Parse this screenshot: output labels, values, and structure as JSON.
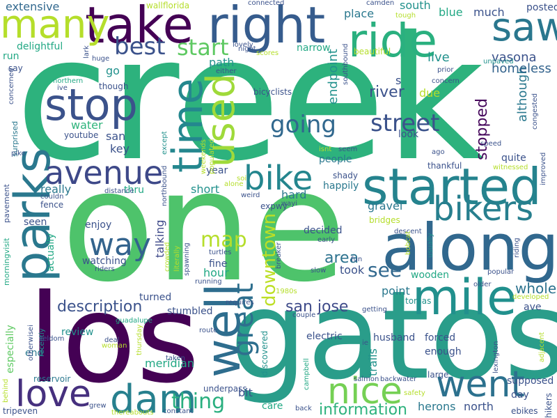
{
  "words": [
    {
      "text": "creek",
      "color": "#2db27d"
    },
    {
      "text": "one",
      "color": "#4ec36b"
    },
    {
      "text": "los",
      "color": "#440154"
    },
    {
      "text": "gatos",
      "color": "#2a9d8a"
    },
    {
      "text": "along",
      "color": "#31688e"
    },
    {
      "text": "parks",
      "color": "#2a788e"
    },
    {
      "text": "well",
      "color": "#2e6d8e"
    },
    {
      "text": "mile",
      "color": "#21908d"
    },
    {
      "text": "take",
      "color": "#440154"
    },
    {
      "text": "right",
      "color": "#365c8d"
    },
    {
      "text": "started",
      "color": "#25838e"
    },
    {
      "text": "ride",
      "color": "#2ab07f"
    },
    {
      "text": "many",
      "color": "#b5de2b"
    },
    {
      "text": "stop",
      "color": "#3b528b"
    },
    {
      "text": "time",
      "color": "#24878e"
    },
    {
      "text": "used",
      "color": "#9fda3a"
    },
    {
      "text": "saw",
      "color": "#2a778e"
    },
    {
      "text": "avenue",
      "color": "#3e4989"
    },
    {
      "text": "bike",
      "color": "#24868e"
    },
    {
      "text": "bikers",
      "color": "#277f8e"
    },
    {
      "text": "love",
      "color": "#46307e"
    },
    {
      "text": "dam",
      "color": "#27808e"
    },
    {
      "text": "went",
      "color": "#2c718e"
    },
    {
      "text": "nice",
      "color": "#75d054"
    },
    {
      "text": "way",
      "color": "#33638d"
    },
    {
      "text": "great",
      "color": "#2e6f8e"
    },
    {
      "text": "downtown",
      "color": "#bddf26"
    },
    {
      "text": "going",
      "color": "#31688e"
    },
    {
      "text": "street",
      "color": "#3b528b"
    },
    {
      "text": "best",
      "color": "#3b528b"
    },
    {
      "text": "start",
      "color": "#5ec962"
    },
    {
      "text": "thing",
      "color": "#29af7f"
    },
    {
      "text": "map",
      "color": "#b5de2b"
    },
    {
      "text": "see",
      "color": "#31688e"
    },
    {
      "text": "area",
      "color": "#2c728e"
    },
    {
      "text": "description",
      "color": "#3b528b"
    },
    {
      "text": "san jose",
      "color": "#3e4a89"
    },
    {
      "text": "information",
      "color": "#2db27d"
    },
    {
      "text": "whole",
      "color": "#2c728e"
    },
    {
      "text": "river",
      "color": "#3b528b"
    },
    {
      "text": "stopped",
      "color": "#46085c"
    },
    {
      "text": "endpoint",
      "color": "#21918c"
    },
    {
      "text": "although",
      "color": "#2a788e"
    },
    {
      "text": "vasona",
      "color": "#3b528b"
    },
    {
      "text": "homeless",
      "color": "#33638d"
    },
    {
      "text": "live",
      "color": "#21918c"
    },
    {
      "text": "delightful",
      "color": "#22a884"
    },
    {
      "text": "extensive",
      "color": "#31688e"
    },
    {
      "text": "water",
      "color": "#2fb47c"
    },
    {
      "text": "key",
      "color": "#3b528b"
    },
    {
      "text": "really",
      "color": "#2a788e"
    },
    {
      "text": "talking",
      "color": "#3e4989"
    },
    {
      "text": "hard",
      "color": "#2a788e"
    },
    {
      "text": "short",
      "color": "#21918c"
    },
    {
      "text": "year",
      "color": "#3b528b"
    },
    {
      "text": "people",
      "color": "#2a788e"
    },
    {
      "text": "gravel",
      "color": "#2a788e"
    },
    {
      "text": "bridges",
      "color": "#b5de2b"
    },
    {
      "text": "decided",
      "color": "#3b528b"
    },
    {
      "text": "took",
      "color": "#3b528b"
    },
    {
      "text": "point",
      "color": "#2a788e"
    },
    {
      "text": "wooden",
      "color": "#22a884"
    },
    {
      "text": "tomas",
      "color": "#21918c"
    },
    {
      "text": "husband",
      "color": "#3b528b"
    },
    {
      "text": "forced",
      "color": "#3b528b"
    },
    {
      "text": "enough",
      "color": "#3b528b"
    },
    {
      "text": "electric",
      "color": "#3b528b"
    },
    {
      "text": "trails",
      "color": "#21918c"
    },
    {
      "text": "discovered",
      "color": "#21918c"
    },
    {
      "text": "underpass",
      "color": "#3b528b"
    },
    {
      "text": "meridian",
      "color": "#22a884"
    },
    {
      "text": "bit",
      "color": "#3b528b"
    },
    {
      "text": "care",
      "color": "#22a884"
    },
    {
      "text": "supposed",
      "color": "#3b528b"
    },
    {
      "text": "day",
      "color": "#3b528b"
    },
    {
      "text": "north",
      "color": "#3b528b"
    },
    {
      "text": "herons",
      "color": "#2a788e"
    },
    {
      "text": "reservoir",
      "color": "#2a788e"
    },
    {
      "text": "review",
      "color": "#21918c"
    },
    {
      "text": "especially",
      "color": "#5ec962"
    },
    {
      "text": "end",
      "color": "#2a788e"
    },
    {
      "text": "actually",
      "color": "#22a884"
    },
    {
      "text": "seen",
      "color": "#3b528b"
    },
    {
      "text": "enjoy",
      "color": "#3b528b"
    },
    {
      "text": "watching",
      "color": "#3b528b"
    },
    {
      "text": "fine",
      "color": "#3b528b"
    },
    {
      "text": "hour",
      "color": "#22a884"
    },
    {
      "text": "turned",
      "color": "#3b528b"
    },
    {
      "text": "stumbled",
      "color": "#3b528b"
    },
    {
      "text": "ave",
      "color": "#3b528b"
    },
    {
      "text": "happily",
      "color": "#2a788e"
    },
    {
      "text": "quite",
      "color": "#3b528b"
    },
    {
      "text": "thankful",
      "color": "#3b528b"
    },
    {
      "text": "fence",
      "color": "#3b528b"
    },
    {
      "text": "thru",
      "color": "#22a884"
    },
    {
      "text": "narrow",
      "color": "#22a884"
    },
    {
      "text": "place",
      "color": "#2a788e"
    },
    {
      "text": "south",
      "color": "#21918c"
    },
    {
      "text": "blue",
      "color": "#22a884"
    },
    {
      "text": "much",
      "color": "#3b528b"
    },
    {
      "text": "posted",
      "color": "#3b528b"
    },
    {
      "text": "beautiful",
      "color": "#b5de2b"
    },
    {
      "text": "due",
      "color": "#b5de2b"
    },
    {
      "text": "go",
      "color": "#21918c"
    },
    {
      "text": "path",
      "color": "#21918c"
    },
    {
      "text": "san",
      "color": "#3b528b"
    },
    {
      "text": "though",
      "color": "#3b528b"
    },
    {
      "text": "youtube",
      "color": "#3b528b"
    },
    {
      "text": "look",
      "color": "#3b528b"
    },
    {
      "text": "s",
      "color": "#3b528b"
    },
    {
      "text": "run",
      "color": "#22a884"
    },
    {
      "text": "say",
      "color": "#3b528b"
    },
    {
      "text": "surprised",
      "color": "#2a788e"
    },
    {
      "text": "pavement",
      "color": "#3b528b"
    },
    {
      "text": "morningvisit",
      "color": "#22a884"
    },
    {
      "text": "expwy",
      "color": "#3b528b"
    },
    {
      "text": "shady",
      "color": "#3b528b"
    },
    {
      "text": "ebikes",
      "color": "#3b528b"
    },
    {
      "text": "tripeven",
      "color": "#3b528b"
    },
    {
      "text": "lexington",
      "color": "#3b528b"
    },
    {
      "text": "large",
      "color": "#3b528b"
    },
    {
      "text": "hikers",
      "color": "#3b528b"
    },
    {
      "text": "crowded",
      "color": "#b5de2b"
    },
    {
      "text": "literally",
      "color": "#b5de2b"
    },
    {
      "text": "spawning",
      "color": "#3b528b"
    },
    {
      "text": "turtles",
      "color": "#3b528b"
    },
    {
      "text": "riders",
      "color": "#3b528b"
    },
    {
      "text": "recently",
      "color": "#21918c"
    },
    {
      "text": "otherwisei",
      "color": "#3b528b"
    },
    {
      "text": "thursday",
      "color": "#b5de2b"
    },
    {
      "text": "deal",
      "color": "#3b528b"
    },
    {
      "text": "woman",
      "color": "#b5de2b"
    },
    {
      "text": "taken",
      "color": "#3b528b"
    },
    {
      "text": "route",
      "color": "#3b528b"
    },
    {
      "text": "guadalupe",
      "color": "#22a884"
    },
    {
      "text": "requires",
      "color": "#3b528b"
    },
    {
      "text": "running",
      "color": "#3b528b"
    },
    {
      "text": "1980s",
      "color": "#b5de2b"
    },
    {
      "text": "couple",
      "color": "#3b528b"
    },
    {
      "text": "getting",
      "color": "#3b528b"
    },
    {
      "text": "ie",
      "color": "#3b528b"
    },
    {
      "text": "campbell",
      "color": "#22a884"
    },
    {
      "text": "salmon",
      "color": "#3b528b"
    },
    {
      "text": "backwater",
      "color": "#3b528b"
    },
    {
      "text": "safety",
      "color": "#b5de2b"
    },
    {
      "text": "back",
      "color": "#3b528b"
    },
    {
      "text": "constant",
      "color": "#3b528b"
    },
    {
      "text": "thereabouts",
      "color": "#b5de2b"
    },
    {
      "text": "grew",
      "color": "#3b528b"
    },
    {
      "text": "behind",
      "color": "#b5de2b"
    },
    {
      "text": "seldom",
      "color": "#3b528b"
    },
    {
      "text": "pike",
      "color": "#3b528b"
    },
    {
      "text": "ive",
      "color": "#3b528b"
    },
    {
      "text": "northern",
      "color": "#22a884"
    },
    {
      "text": "concerned",
      "color": "#3b528b"
    },
    {
      "text": "huge",
      "color": "#3b528b"
    },
    {
      "text": "lark",
      "color": "#3b528b"
    },
    {
      "text": "distance",
      "color": "#3b528b"
    },
    {
      "text": "couldn",
      "color": "#3b528b"
    },
    {
      "text": "alone",
      "color": "#b5de2b"
    },
    {
      "text": "soi",
      "color": "#b5de2b"
    },
    {
      "text": "weird",
      "color": "#3b528b"
    },
    {
      "text": "northbound",
      "color": "#3b528b"
    },
    {
      "text": "weekends",
      "color": "#b5de2b"
    },
    {
      "text": "populated",
      "color": "#b5de2b"
    },
    {
      "text": "except",
      "color": "#21918c"
    },
    {
      "text": "wall",
      "color": "#b5de2b"
    },
    {
      "text": "florida",
      "color": "#b5de2b"
    },
    {
      "text": "connected",
      "color": "#3b528b"
    },
    {
      "text": "lovely",
      "color": "#3b528b"
    },
    {
      "text": "night",
      "color": "#3b528b"
    },
    {
      "text": "scores",
      "color": "#b5de2b"
    },
    {
      "text": "either",
      "color": "#3b528b"
    },
    {
      "text": "bicyclists",
      "color": "#3b528b"
    },
    {
      "text": "southbound",
      "color": "#3b528b"
    },
    {
      "text": "camden",
      "color": "#3b528b"
    },
    {
      "text": "tough",
      "color": "#b5de2b"
    },
    {
      "text": "prior",
      "color": "#3b528b"
    },
    {
      "text": "concern",
      "color": "#3b528b"
    },
    {
      "text": "unpaved",
      "color": "#21918c"
    },
    {
      "text": "congested",
      "color": "#3b528b"
    },
    {
      "text": "ago",
      "color": "#3b528b"
    },
    {
      "text": "speed",
      "color": "#3b528b"
    },
    {
      "text": "seem",
      "color": "#3b528b"
    },
    {
      "text": "isnt",
      "color": "#b5de2b"
    },
    {
      "text": "witnessed",
      "color": "#b5de2b"
    },
    {
      "text": "improved",
      "color": "#3b528b"
    },
    {
      "text": "wayi",
      "color": "#3b528b"
    },
    {
      "text": "early",
      "color": "#3b528b"
    },
    {
      "text": "descent",
      "color": "#3b528b"
    },
    {
      "text": "bobcat",
      "color": "#b5de2b"
    },
    {
      "text": "breaker",
      "color": "#3b528b"
    },
    {
      "text": "usually",
      "color": "#21918c"
    },
    {
      "text": "fun",
      "color": "#3b528b"
    },
    {
      "text": "slow",
      "color": "#3b528b"
    },
    {
      "text": "riding",
      "color": "#3b528b"
    },
    {
      "text": "popular",
      "color": "#3b528b"
    },
    {
      "text": "older",
      "color": "#3b528b"
    },
    {
      "text": "developed",
      "color": "#b5de2b"
    },
    {
      "text": "adjacent",
      "color": "#b5de2b"
    }
  ]
}
